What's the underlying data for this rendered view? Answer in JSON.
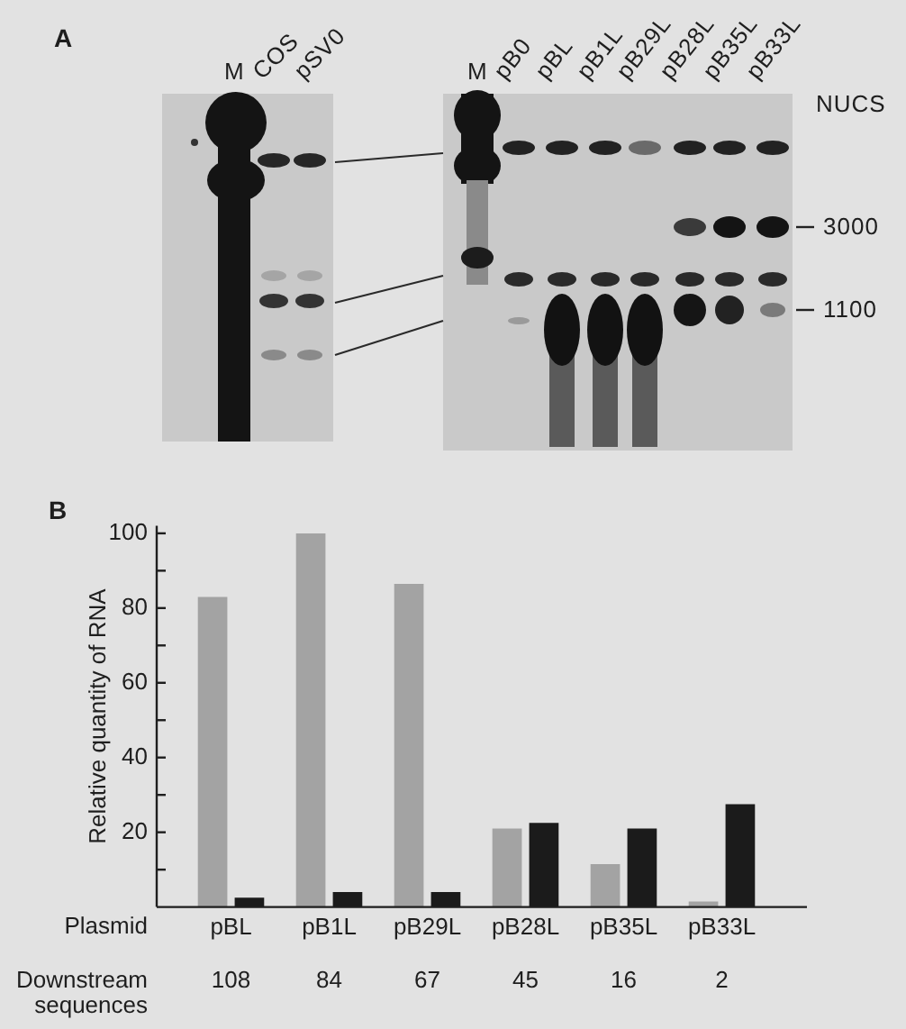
{
  "chart_data": [
    {
      "type": "other",
      "title": "A",
      "categories": [
        "M",
        "COS",
        "pSV0",
        "M",
        "pB0",
        "pBL",
        "pB1L",
        "pB29L",
        "pB28L",
        "pB35L",
        "pB33L"
      ],
      "ylabel": "NUCS",
      "annotations": [
        "3000",
        "1100"
      ]
    },
    {
      "type": "bar",
      "title": "B",
      "categories": [
        "pBL",
        "pB1L",
        "pB29L",
        "pB28L",
        "pB35L",
        "pB33L"
      ],
      "series": [
        {
          "color": "#a3a3a3",
          "values": [
            83,
            100,
            86.5,
            21,
            11.5,
            1.5
          ]
        },
        {
          "color": "#1b1b1b",
          "values": [
            2.5,
            4,
            4,
            22.5,
            21,
            27.5
          ]
        }
      ],
      "xlabel": "Plasmid",
      "ylabel": "Relative quantity of RNA",
      "ylim": [
        0,
        102
      ],
      "yticks": [
        {
          "value": 10,
          "label": null
        },
        20,
        {
          "value": 30,
          "label": null
        },
        40,
        {
          "value": 50,
          "label": null
        },
        60,
        {
          "value": 70,
          "label": null
        },
        80,
        {
          "value": 90,
          "label": null
        },
        100
      ],
      "annotations": [
        "Downstream sequences",
        "108",
        "84",
        "67",
        "45",
        "16",
        "2"
      ]
    }
  ]
}
